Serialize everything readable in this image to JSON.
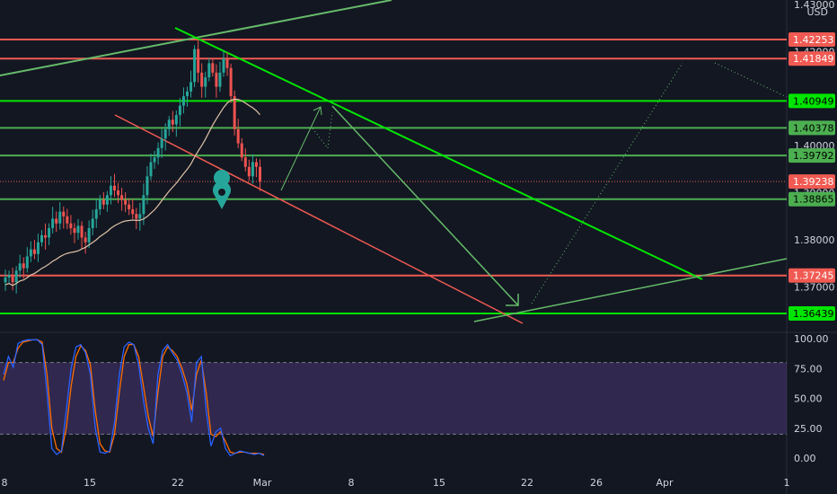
{
  "chart_data": [
    {
      "type": "candlestick",
      "currency": "USD",
      "y_ticks_upper": [
        "1.43000",
        "1.42000",
        "1.41000",
        "1.40000",
        "1.39000",
        "1.38000",
        "1.37000"
      ],
      "x_ticks": [
        "8",
        "15",
        "22",
        "Mar",
        "8",
        "15",
        "22",
        "26",
        "Apr",
        "1"
      ],
      "price_lines": [
        {
          "label": "1.42253",
          "value": 1.42253,
          "color": "#f05a52",
          "text_color": "#ffffff"
        },
        {
          "label": "1.41849",
          "value": 1.41849,
          "color": "#f05a52",
          "text_color": "#ffffff"
        },
        {
          "label": "1.40949",
          "value": 1.40949,
          "color": "#00e600",
          "text_color": "#000000"
        },
        {
          "label": "1.40378",
          "value": 1.40378,
          "color": "#4caf50",
          "text_color": "#000000"
        },
        {
          "label": "1.39792",
          "value": 1.39792,
          "color": "#4caf50",
          "text_color": "#000000"
        },
        {
          "label": "1.39238",
          "value": 1.39238,
          "color": "#f05a52",
          "text_color": "#ffffff",
          "dotted": true
        },
        {
          "label": "1.38865",
          "value": 1.38865,
          "color": "#4caf50",
          "text_color": "#000000"
        },
        {
          "label": "1.37245",
          "value": 1.37245,
          "color": "#f05a52",
          "text_color": "#ffffff"
        },
        {
          "label": "1.36439",
          "value": 1.36439,
          "color": "#00e600",
          "text_color": "#000000"
        }
      ],
      "candles_close": [
        1.372,
        1.3725,
        1.371,
        1.3735,
        1.375,
        1.374,
        1.3765,
        1.378,
        1.377,
        1.3795,
        1.381,
        1.3805,
        1.3825,
        1.3845,
        1.3835,
        1.386,
        1.385,
        1.3835,
        1.3825,
        1.3815,
        1.383,
        1.3805,
        1.3795,
        1.3825,
        1.3845,
        1.3865,
        1.3885,
        1.3875,
        1.3895,
        1.3915,
        1.3905,
        1.3895,
        1.3885,
        1.3875,
        1.3865,
        1.3855,
        1.3845,
        1.3855,
        1.3895,
        1.3935,
        1.3965,
        1.3975,
        1.3995,
        1.4015,
        1.4035,
        1.4055,
        1.4045,
        1.4065,
        1.4085,
        1.4105,
        1.4115,
        1.4135,
        1.4205,
        1.4155,
        1.4125,
        1.4145,
        1.4175,
        1.4155,
        1.4125,
        1.4155,
        1.4185,
        1.4165,
        1.4105,
        1.4035,
        1.4005,
        1.3975,
        1.3955,
        1.3935,
        1.3965,
        1.3955,
        1.3925
      ],
      "bullish_color": "#26a69a",
      "bearish_color": "#ef5350",
      "ma_color": "#e0c3a8"
    },
    {
      "type": "line",
      "name": "stochastic",
      "y_ticks": [
        "100.00",
        "75.00",
        "50.00",
        "25.00",
        "0.00"
      ],
      "levels": [
        80,
        20
      ],
      "k_color": "#2962ff",
      "d_color": "#ff6d00",
      "band_color": "#7e57c2",
      "k_values": [
        70,
        85,
        76,
        96,
        98,
        99,
        99,
        99,
        95,
        55,
        8,
        3,
        6,
        40,
        75,
        93,
        95,
        88,
        70,
        25,
        5,
        4,
        6,
        30,
        70,
        93,
        97,
        95,
        78,
        48,
        25,
        12,
        70,
        90,
        95,
        88,
        82,
        70,
        55,
        30,
        80,
        85,
        40,
        10,
        22,
        25,
        8,
        2,
        4,
        6,
        5,
        4,
        3,
        4,
        2
      ],
      "d_values": [
        65,
        80,
        80,
        92,
        97,
        98,
        99,
        99,
        97,
        70,
        25,
        8,
        5,
        25,
        60,
        85,
        94,
        90,
        78,
        40,
        12,
        6,
        5,
        20,
        55,
        85,
        95,
        95,
        85,
        60,
        35,
        18,
        55,
        85,
        93,
        90,
        85,
        75,
        62,
        40,
        70,
        82,
        55,
        20,
        18,
        22,
        14,
        5,
        4,
        5,
        5,
        4,
        4,
        4,
        3
      ]
    }
  ]
}
